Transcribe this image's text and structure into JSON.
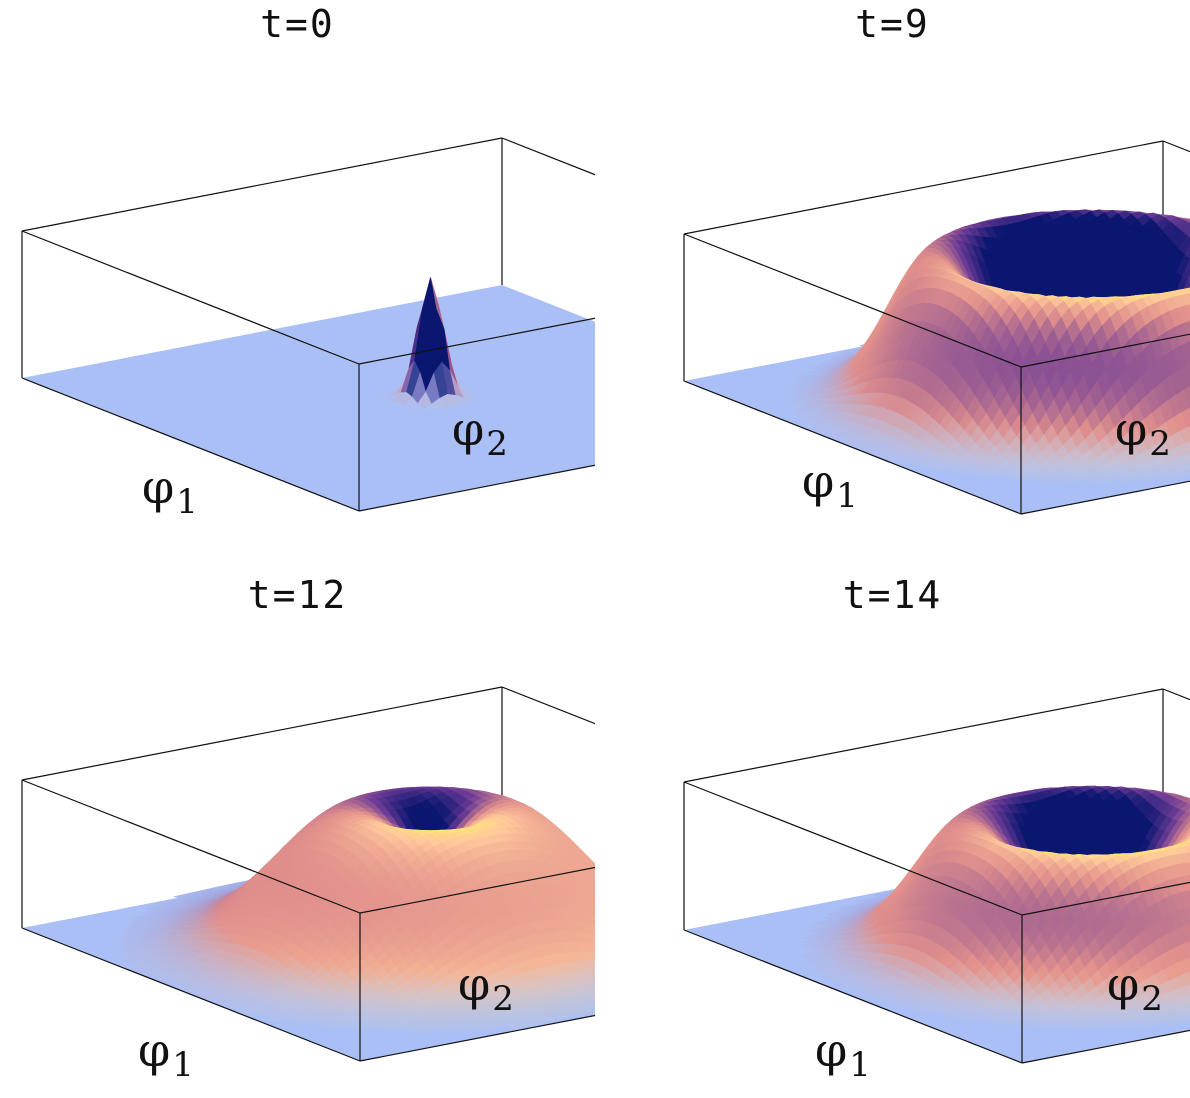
{
  "chart_data": [
    {
      "type": "surface3d",
      "title": "t=0",
      "xlabel": "φ",
      "xlabel_sub": "1",
      "ylabel": "φ",
      "ylabel_sub": "2",
      "shape": "peak",
      "ring_radius": 0.0,
      "ring_width": 0.045,
      "relative_height": 0.82
    },
    {
      "type": "surface3d",
      "title": "t=9",
      "xlabel": "φ",
      "xlabel_sub": "1",
      "ylabel": "φ",
      "ylabel_sub": "2",
      "shape": "ring",
      "ring_radius": 0.7,
      "ring_width": 0.3,
      "relative_height": 1.0
    },
    {
      "type": "surface3d",
      "title": "t=12",
      "xlabel": "φ",
      "xlabel_sub": "1",
      "ylabel": "φ",
      "ylabel_sub": "2",
      "shape": "ring",
      "ring_radius": 0.35,
      "ring_width": 0.5,
      "relative_height": 0.93
    },
    {
      "type": "surface3d",
      "title": "t=14",
      "xlabel": "φ",
      "xlabel_sub": "1",
      "ylabel": "φ",
      "ylabel_sub": "2",
      "shape": "ring",
      "ring_radius": 0.55,
      "ring_width": 0.35,
      "relative_height": 0.87
    }
  ],
  "colors": {
    "floor": "#aabff5",
    "shade_dark": "#0a1670",
    "shade_purple": "#6e3c96",
    "shade_pink": "#e1908c",
    "shade_peach": "#ffc89b",
    "shade_yellow": "#ffee6e",
    "box_line": "#111111"
  }
}
